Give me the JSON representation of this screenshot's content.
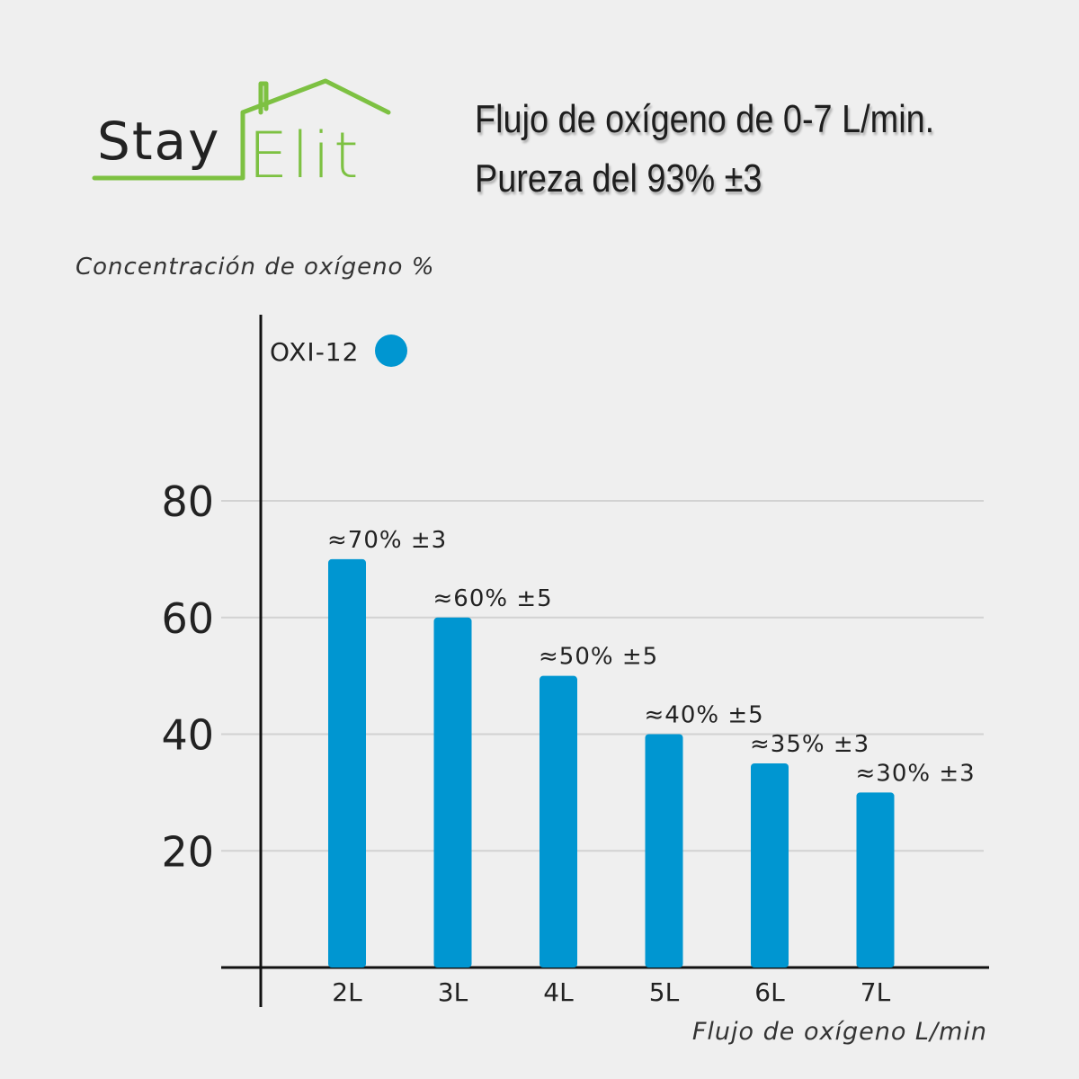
{
  "brand": {
    "name_part1": "Stay",
    "name_part2": "Elit",
    "color": "#7dc142"
  },
  "heading": {
    "line1": "Flujo de oxígeno de 0-7 L/min.",
    "line2": "Pureza del 93% ±3"
  },
  "chart_data": {
    "type": "bar",
    "categories": [
      "2L",
      "3L",
      "4L",
      "5L",
      "6L",
      "7L"
    ],
    "series": [
      {
        "name": "OXI-12",
        "values": [
          70,
          60,
          50,
          40,
          35,
          30
        ],
        "labels": [
          "≈70% ±3",
          "≈60% ±5",
          "≈50% ±5",
          "≈40% ±5",
          "≈35% ±3",
          "≈30% ±3"
        ],
        "color": "#0096d1"
      }
    ],
    "xlabel": "Flujo de oxígeno L/min",
    "ylabel": "Concentración de oxígeno %",
    "yticks": [
      20,
      40,
      60,
      80
    ],
    "ylim": [
      0,
      107
    ],
    "grid": true,
    "legend": "top-left"
  }
}
